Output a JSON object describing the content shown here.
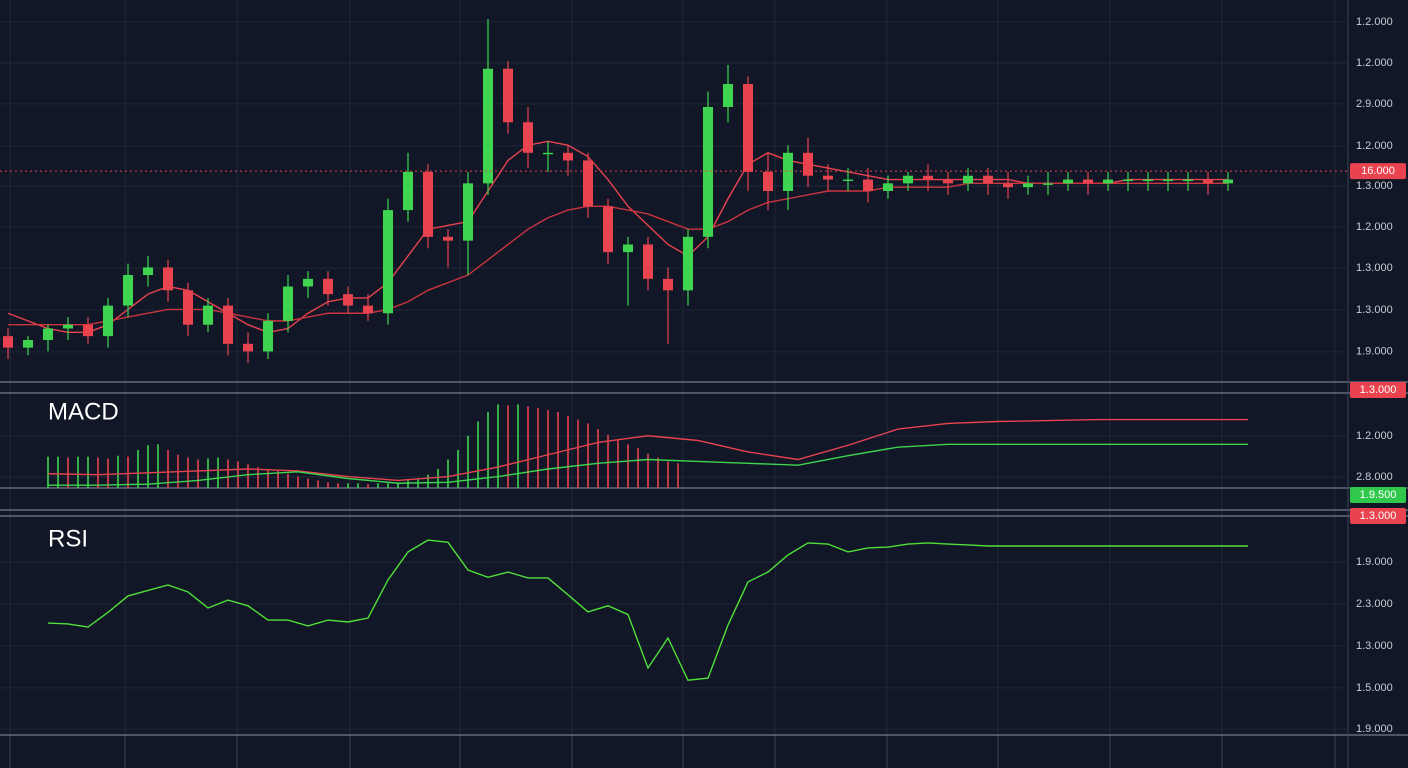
{
  "chart_data": [
    {
      "type": "candlestick",
      "open": [
        12,
        9,
        11,
        14,
        15,
        12,
        20,
        28,
        30,
        24,
        15,
        20,
        10,
        8,
        16,
        25,
        27,
        23,
        20,
        18,
        45,
        55,
        38,
        37,
        52,
        82,
        68,
        60,
        60,
        58,
        46,
        34,
        36,
        27,
        24,
        38,
        72,
        78,
        55,
        50,
        60,
        54,
        53,
        53,
        50,
        52,
        54,
        53,
        52,
        54,
        52,
        51,
        52,
        52,
        53,
        52,
        53,
        53,
        53,
        53,
        53,
        52
      ],
      "high": [
        14,
        12,
        15,
        17,
        17,
        22,
        31,
        33,
        32,
        26,
        22,
        22,
        13,
        18,
        28,
        29,
        29,
        25,
        23,
        48,
        60,
        57,
        40,
        55,
        95,
        84,
        72,
        63,
        62,
        60,
        48,
        38,
        38,
        30,
        40,
        76,
        83,
        80,
        60,
        62,
        64,
        57,
        56,
        56,
        54,
        55,
        57,
        55,
        56,
        56,
        55,
        54,
        55,
        55,
        55,
        55,
        55,
        55,
        55,
        55,
        55,
        55
      ],
      "low": [
        6,
        7,
        8,
        11,
        10,
        9,
        17,
        25,
        21,
        12,
        13,
        7,
        5,
        6,
        13,
        22,
        20,
        18,
        16,
        15,
        42,
        35,
        30,
        28,
        49,
        65,
        56,
        55,
        54,
        43,
        31,
        20,
        24,
        10,
        20,
        35,
        68,
        50,
        45,
        45,
        51,
        50,
        50,
        47,
        48,
        50,
        50,
        49,
        50,
        49,
        48,
        49,
        49,
        50,
        49,
        50,
        50,
        50,
        50,
        50,
        49,
        50
      ],
      "close": [
        9,
        11,
        14,
        15,
        12,
        20,
        28,
        30,
        24,
        15,
        20,
        10,
        8,
        16,
        25,
        27,
        23,
        20,
        18,
        45,
        55,
        38,
        37,
        52,
        82,
        68,
        60,
        60,
        58,
        46,
        34,
        36,
        27,
        24,
        38,
        72,
        78,
        55,
        50,
        60,
        54,
        53,
        53,
        50,
        52,
        54,
        53,
        52,
        54,
        52,
        51,
        52,
        52,
        53,
        52,
        53,
        53,
        53,
        53,
        53,
        52,
        53
      ],
      "up_color": "#3fd44f",
      "down_color": "#e8434f",
      "series": [
        {
          "color": "#e8434f",
          "values": [
            18,
            16,
            14,
            13,
            13,
            15,
            19,
            23,
            25,
            24,
            21,
            18,
            15,
            13,
            14,
            18,
            21,
            22,
            22,
            26,
            33,
            40,
            41,
            42,
            50,
            58,
            62,
            63,
            62,
            59,
            53,
            46,
            41,
            36,
            33,
            38,
            48,
            57,
            60,
            58,
            57,
            56,
            55,
            54,
            53,
            53,
            53,
            53,
            53,
            53,
            53,
            52,
            52,
            52,
            52,
            52,
            53,
            53,
            53,
            53,
            53,
            53
          ]
        },
        {
          "color": "#c9343f",
          "values": [
            15,
            15,
            15,
            15,
            15,
            16,
            17,
            18,
            19,
            19,
            19,
            18,
            17,
            16,
            16,
            17,
            18,
            18,
            18,
            19,
            21,
            24,
            26,
            28,
            32,
            36,
            40,
            43,
            45,
            46,
            46,
            45,
            44,
            42,
            40,
            40,
            42,
            45,
            47,
            48,
            49,
            50,
            50,
            50,
            51,
            51,
            51,
            51,
            52,
            52,
            52,
            52,
            52,
            52,
            52,
            52,
            52,
            52,
            52,
            52,
            52,
            52
          ]
        }
      ],
      "last_price": {
        "value": 55.2,
        "label": "16.000"
      },
      "ylim": [
        0,
        100
      ],
      "yticks": [
        {
          "value": 94.2,
          "label": "1.2.000"
        },
        {
          "value": 83.5,
          "label": "1.2.000"
        },
        {
          "value": 72.8,
          "label": "2.9.000"
        },
        {
          "value": 61.8,
          "label": "1.2.000"
        },
        {
          "value": 51.3,
          "label": "1.3.000"
        },
        {
          "value": 40.6,
          "label": "1.2.000"
        },
        {
          "value": 29.8,
          "label": "1.3.000"
        },
        {
          "value": 18.8,
          "label": "1.3.000"
        },
        {
          "value": 7.9,
          "label": "1.9.000"
        }
      ],
      "badges": [
        {
          "label": "1.3.000",
          "color": "#e8434f"
        }
      ],
      "grid": true
    },
    {
      "type": "macd",
      "title": "MACD",
      "histogram": {
        "up_color": "#3fd44f",
        "down_color": "#e8434f",
        "values": [
          33,
          33,
          32,
          33,
          33,
          32,
          31,
          34,
          33,
          40,
          45,
          46,
          40,
          35,
          32,
          30,
          31,
          32,
          30,
          28,
          25,
          22,
          20,
          18,
          15,
          12,
          10,
          8,
          6,
          5,
          5,
          5,
          4,
          5,
          5,
          6,
          8,
          10,
          14,
          20,
          30,
          40,
          55,
          70,
          80,
          88,
          87,
          88,
          86,
          84,
          82,
          80,
          76,
          72,
          68,
          62,
          56,
          50,
          46,
          42,
          36,
          32,
          28,
          26
        ]
      },
      "series": [
        {
          "color": "#e8434f",
          "values": [
            15,
            14,
            16,
            18,
            20,
            18,
            12,
            8,
            12,
            22,
            35,
            48,
            55,
            50,
            38,
            30,
            45,
            62,
            68,
            70,
            71,
            72,
            72,
            72,
            72
          ]
        },
        {
          "color": "#3fd44f",
          "values": [
            3,
            3,
            4,
            8,
            14,
            17,
            10,
            5,
            6,
            12,
            20,
            26,
            30,
            28,
            26,
            24,
            34,
            43,
            46,
            46,
            46,
            46,
            46,
            46,
            46
          ]
        }
      ],
      "ylim": [
        0,
        100
      ],
      "yticks": [
        {
          "value": 54.7,
          "label": "1.2.000"
        },
        {
          "value": 11.6,
          "label": "2.8.000"
        }
      ],
      "badges": [
        {
          "label": "1.9.500",
          "color": "#2fc84a"
        },
        {
          "label": "1.3.000",
          "color": "#e8434f"
        }
      ],
      "grid": true
    },
    {
      "type": "line",
      "title": "RSI",
      "series": [
        {
          "color": "#4fe03a",
          "values": [
            51.1,
            50.7,
            49.3,
            56,
            63.5,
            66,
            68.5,
            65.3,
            58,
            61.6,
            59,
            52.5,
            52.5,
            49.8,
            52.5,
            51.6,
            53.4,
            70.8,
            83.6,
            89,
            88,
            75.3,
            72,
            74.4,
            71.7,
            71.7,
            64,
            56.2,
            59,
            55,
            30.6,
            44.3,
            25,
            26,
            50.2,
            69.9,
            74.4,
            82.2,
            87.7,
            87.2,
            83.6,
            85.4,
            85.8,
            87.2,
            87.7,
            87.2,
            86.8,
            86.3,
            86.3,
            86.3,
            86.3,
            86.3,
            86.3,
            86.3,
            86.3,
            86.3,
            86.3,
            86.3,
            86.3,
            86.3,
            86.3
          ]
        }
      ],
      "ylim": [
        0,
        100
      ],
      "yticks": [
        {
          "value": 79,
          "label": "1.9.000"
        },
        {
          "value": 59.8,
          "label": "2.3.000"
        },
        {
          "value": 40.6,
          "label": "1.3.000"
        },
        {
          "value": 21.5,
          "label": "1.5.000"
        },
        {
          "value": 2.7,
          "label": "1.9.000"
        }
      ],
      "grid": true
    }
  ]
}
